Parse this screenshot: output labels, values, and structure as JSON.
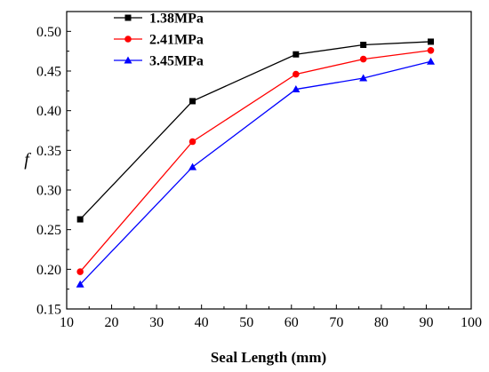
{
  "chart_data": {
    "type": "line",
    "title": "",
    "xlabel": "Seal Length (mm)",
    "ylabel": "f",
    "xlim": [
      10,
      100
    ],
    "ylim": [
      0.15,
      0.525
    ],
    "xticks": [
      10,
      20,
      30,
      40,
      50,
      60,
      70,
      80,
      90,
      100
    ],
    "yticks": [
      "0.15",
      "0.20",
      "0.25",
      "0.30",
      "0.35",
      "0.40",
      "0.45",
      "0.50"
    ],
    "grid": false,
    "legend_position": "top-left",
    "series": [
      {
        "name": "1.38MPa",
        "color": "#000000",
        "marker": "square",
        "x": [
          13,
          38,
          61,
          76,
          91
        ],
        "y": [
          0.263,
          0.412,
          0.471,
          0.483,
          0.487
        ]
      },
      {
        "name": "2.41MPa",
        "color": "#ff0000",
        "marker": "circle",
        "x": [
          13,
          38,
          61,
          76,
          91
        ],
        "y": [
          0.197,
          0.361,
          0.446,
          0.465,
          0.476
        ]
      },
      {
        "name": "3.45MPa",
        "color": "#0000ff",
        "marker": "triangle",
        "x": [
          13,
          38,
          61,
          76,
          91
        ],
        "y": [
          0.181,
          0.329,
          0.427,
          0.441,
          0.462
        ]
      }
    ]
  }
}
